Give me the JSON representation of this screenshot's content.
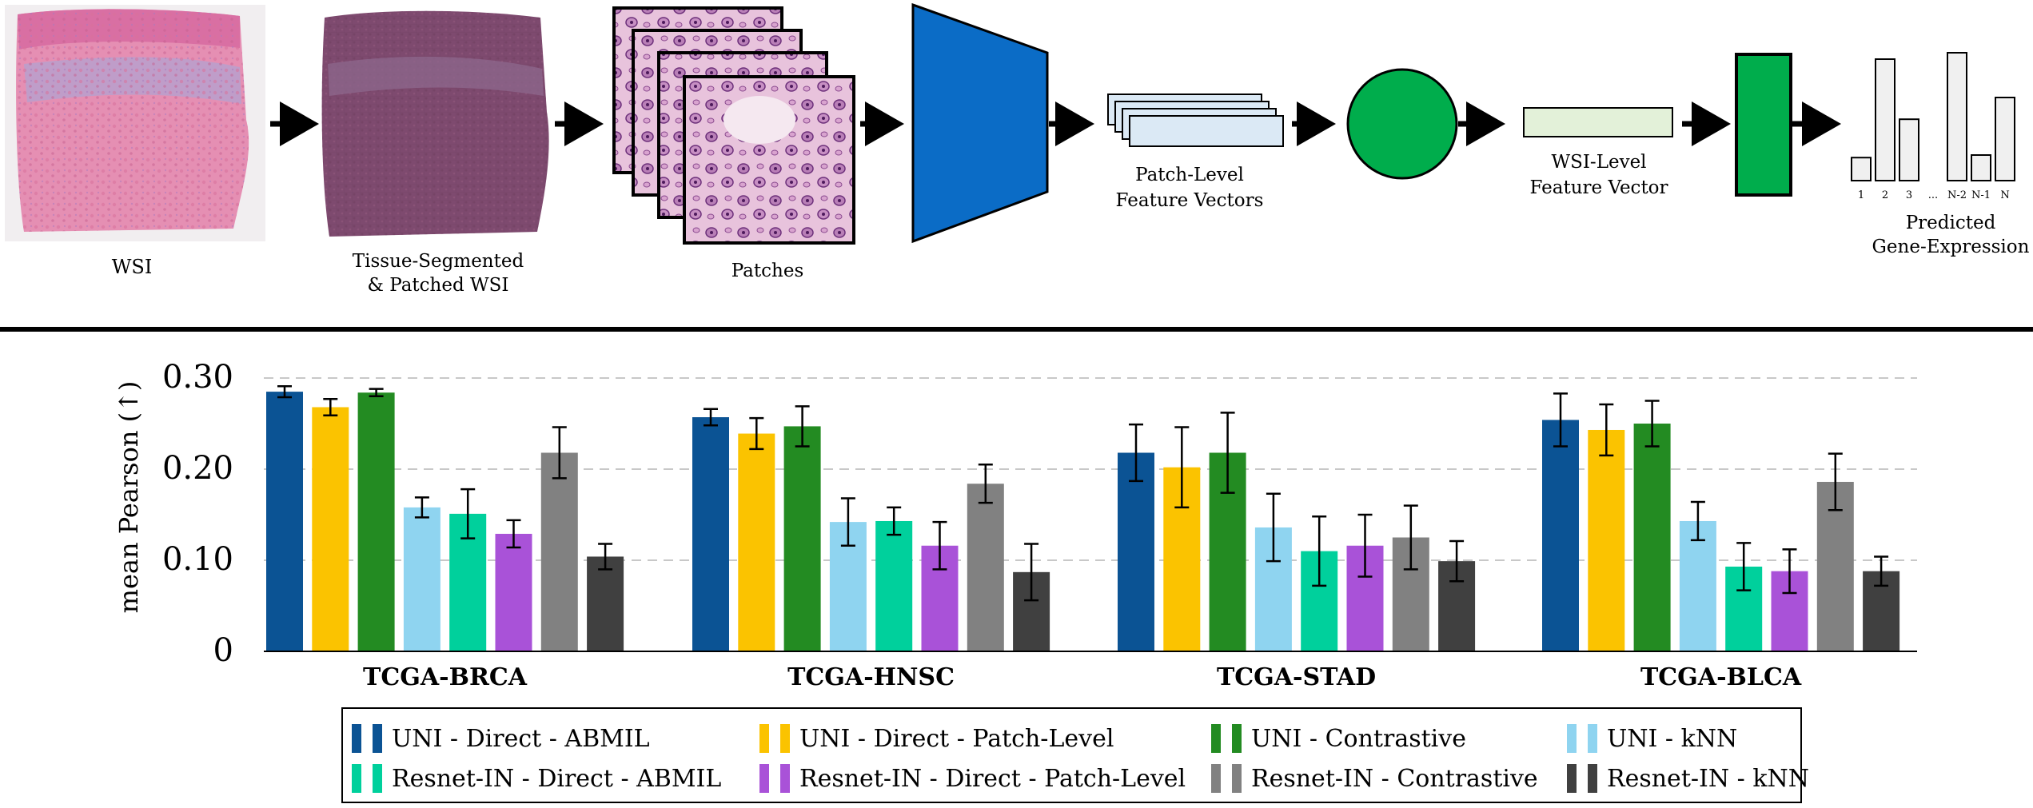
{
  "pipeline": {
    "labels": {
      "wsi": "WSI",
      "segmented_line1": "Tissue-Segmented",
      "segmented_line2": "& Patched WSI",
      "patches": "Patches",
      "patch_features_line1": "Patch-Level",
      "patch_features_line2": "Feature Vectors",
      "wsi_feature_line1": "WSI-Level",
      "wsi_feature_line2": "Feature Vector",
      "predicted_line1": "Predicted",
      "predicted_line2": "Gene-Expression"
    },
    "gene_ticks": [
      "1",
      "2",
      "3",
      "...",
      "N-2",
      "N-1",
      "N"
    ],
    "gene_values": [
      0.18,
      0.95,
      0.48,
      0,
      1.0,
      0.2,
      0.65
    ],
    "colors": {
      "encoder": "#0b6cc6",
      "aggregator": "#00ad4c",
      "head": "#00ad4c",
      "feature_fill": "#dbe9f5",
      "wsi_feature_fill": "#e3f1d9"
    }
  },
  "chart_data": {
    "type": "bar",
    "ylabel": "mean Pearson (↑)",
    "ylim": [
      0,
      0.3
    ],
    "yticks": [
      0,
      0.1,
      0.2,
      0.3
    ],
    "ytick_labels": [
      "0",
      "0.10",
      "0.20",
      "0.30"
    ],
    "grid": "horizontal dashed",
    "legend_position": "bottom",
    "categories": [
      "TCGA-BRCA",
      "TCGA-HNSC",
      "TCGA-STAD",
      "TCGA-BLCA"
    ],
    "series": [
      {
        "name": "UNI - Direct - ABMIL",
        "color": "#0b5394",
        "values": [
          0.285,
          0.257,
          0.218,
          0.254
        ],
        "errors": [
          0.006,
          0.009,
          0.031,
          0.029
        ]
      },
      {
        "name": "UNI - Direct - Patch-Level",
        "color": "#fbc300",
        "values": [
          0.268,
          0.239,
          0.202,
          0.243
        ],
        "errors": [
          0.009,
          0.017,
          0.044,
          0.028
        ]
      },
      {
        "name": "UNI - Contrastive",
        "color": "#238b22",
        "values": [
          0.284,
          0.247,
          0.218,
          0.25
        ],
        "errors": [
          0.004,
          0.022,
          0.044,
          0.025
        ]
      },
      {
        "name": "UNI - kNN",
        "color": "#8fd4f0",
        "values": [
          0.158,
          0.142,
          0.136,
          0.143
        ],
        "errors": [
          0.011,
          0.026,
          0.037,
          0.021
        ]
      },
      {
        "name": "Resnet-IN - Direct - ABMIL",
        "color": "#00d09c",
        "values": [
          0.151,
          0.143,
          0.11,
          0.093
        ],
        "errors": [
          0.027,
          0.015,
          0.038,
          0.026
        ]
      },
      {
        "name": "Resnet-IN - Direct - Patch-Level",
        "color": "#a952d8",
        "values": [
          0.129,
          0.116,
          0.116,
          0.088
        ],
        "errors": [
          0.015,
          0.026,
          0.034,
          0.024
        ]
      },
      {
        "name": "Resnet-IN - Contrastive",
        "color": "#818181",
        "values": [
          0.218,
          0.184,
          0.125,
          0.186
        ],
        "errors": [
          0.028,
          0.021,
          0.035,
          0.031
        ]
      },
      {
        "name": "Resnet-IN - kNN",
        "color": "#404040",
        "values": [
          0.104,
          0.087,
          0.099,
          0.088
        ],
        "errors": [
          0.014,
          0.031,
          0.022,
          0.016
        ]
      }
    ]
  }
}
